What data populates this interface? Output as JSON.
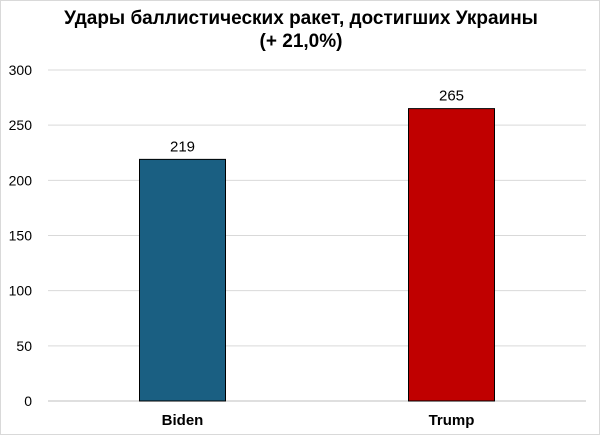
{
  "chart_data": {
    "type": "bar",
    "title": "Удары баллистических ракет, достигших Украины",
    "subtitle": "(+ 21,0%)",
    "categories": [
      "Biden",
      "Trump"
    ],
    "values": [
      219,
      265
    ],
    "data_labels": [
      "219",
      "265"
    ],
    "colors": [
      "#1a5f82",
      "#c00000"
    ],
    "xlabel": "",
    "ylabel": "",
    "ylim": [
      0,
      300
    ],
    "yticks": [
      0,
      50,
      100,
      150,
      200,
      250,
      300
    ],
    "grid": true,
    "legend": "none"
  }
}
